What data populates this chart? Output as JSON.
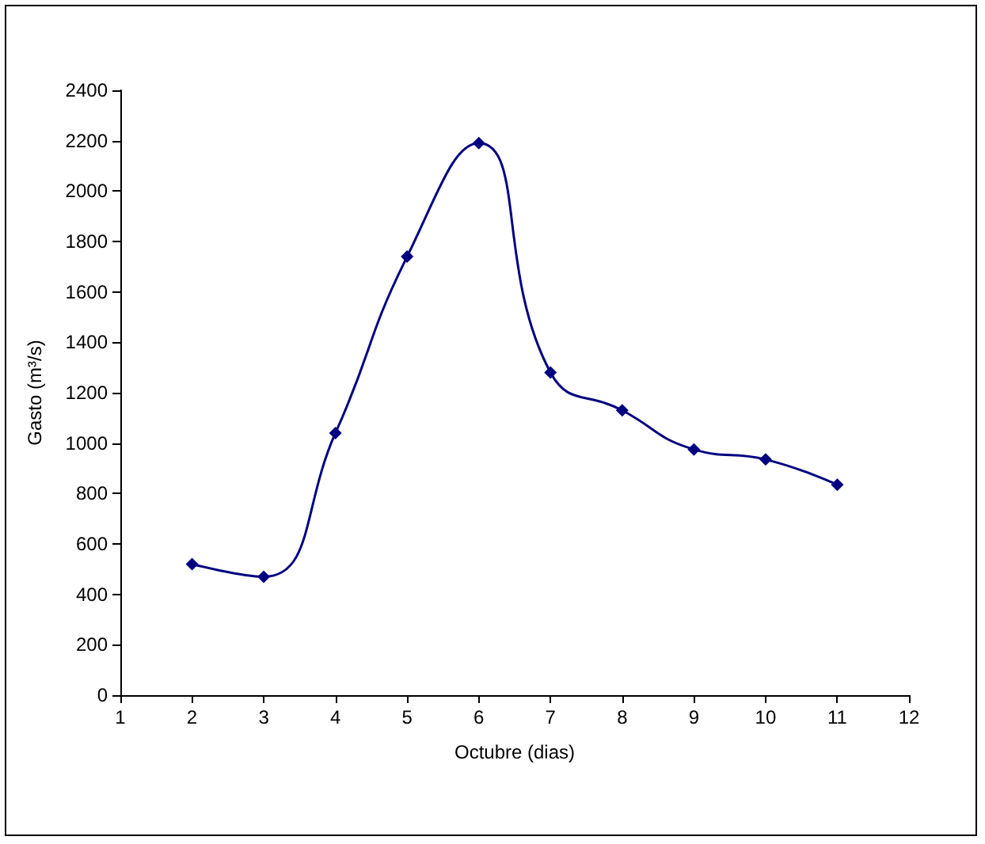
{
  "chart_data": {
    "type": "line",
    "xlabel": "Octubre (dias)",
    "ylabel": "Gasto (m³/s)",
    "x": [
      2,
      3,
      4,
      5,
      6,
      7,
      8,
      9,
      10,
      11
    ],
    "series": [
      {
        "color": "#000080",
        "values": [
          520,
          470,
          1040,
          1740,
          2190,
          1280,
          1130,
          975,
          935,
          835
        ]
      }
    ],
    "xlim": [
      1,
      12
    ],
    "xticks": [
      1,
      2,
      3,
      4,
      5,
      6,
      7,
      8,
      9,
      10,
      11,
      12
    ],
    "ylim": [
      0,
      2400
    ],
    "yticks": [
      0,
      200,
      400,
      600,
      800,
      1000,
      1200,
      1400,
      1600,
      1800,
      2000,
      2200,
      2400
    ],
    "grid": false,
    "marker": "diamond",
    "line_style": "solid"
  }
}
